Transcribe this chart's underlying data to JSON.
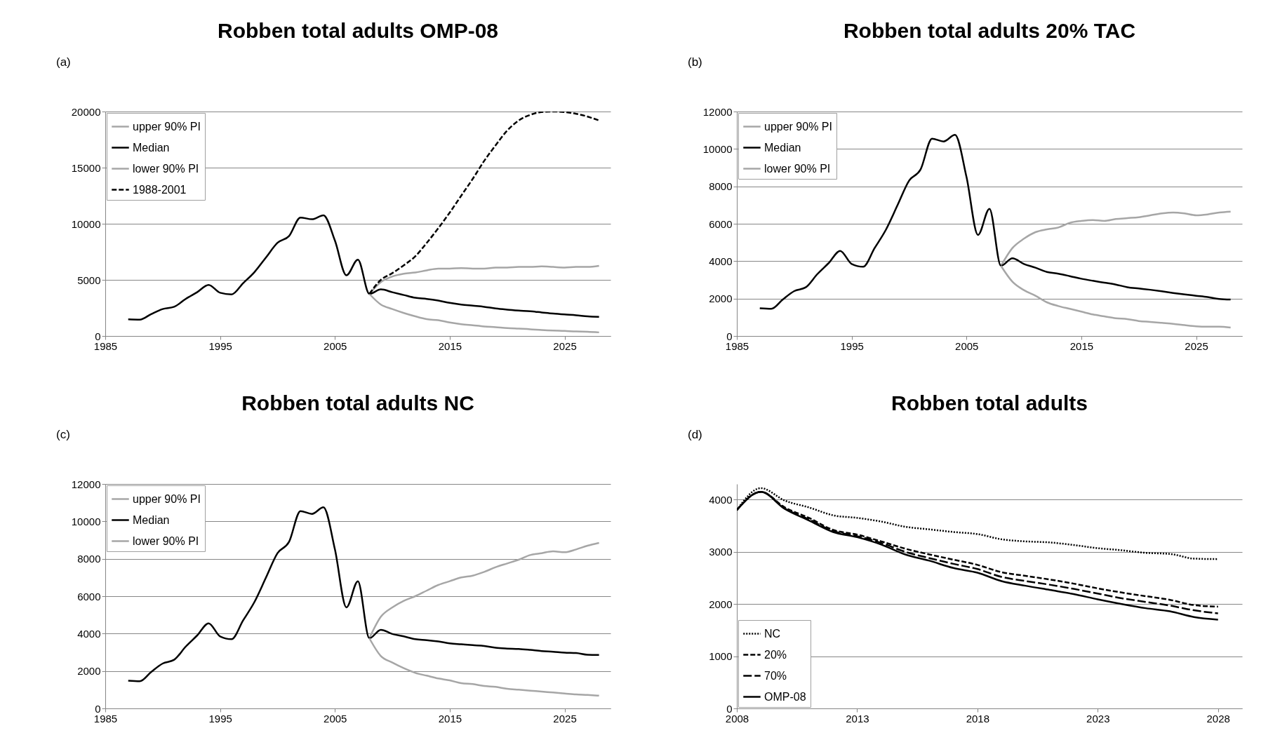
{
  "chart_data": [
    {
      "type": "line",
      "title": "Robben total adults OMP-08",
      "annotations": [
        "(a)"
      ],
      "xlim": [
        1985,
        2029
      ],
      "xticks": [
        1985,
        1995,
        2005,
        2015,
        2025
      ],
      "ylim": [
        0,
        20000
      ],
      "yticks": [
        0,
        5000,
        10000,
        15000,
        20000
      ],
      "grid": "y",
      "legend": "top left",
      "series": [
        {
          "name": "upper 90% PI",
          "color": "#a6a6a6",
          "line_style": "solid",
          "x": [
            2008,
            2009,
            2010,
            2011,
            2012,
            2013,
            2014,
            2015,
            2016,
            2017,
            2018,
            2019,
            2020,
            2021,
            2022,
            2023,
            2024,
            2025,
            2026,
            2027,
            2028
          ],
          "values": [
            3750,
            4800,
            5300,
            5550,
            5650,
            5850,
            6000,
            6000,
            6050,
            6000,
            6000,
            6100,
            6100,
            6150,
            6150,
            6200,
            6150,
            6100,
            6150,
            6150,
            6250
          ]
        },
        {
          "name": "Median",
          "color": "#000000",
          "line_style": "solid",
          "x": [
            1987,
            1988,
            1989,
            1990,
            1991,
            1992,
            1993,
            1994,
            1995,
            1996,
            1997,
            1998,
            1999,
            2000,
            2001,
            2002,
            2003,
            2004,
            2005,
            2006,
            2007,
            2008,
            2009,
            2010,
            2011,
            2012,
            2013,
            2014,
            2015,
            2016,
            2017,
            2018,
            2019,
            2020,
            2021,
            2022,
            2023,
            2024,
            2025,
            2026,
            2027,
            2028
          ],
          "values": [
            1480,
            1450,
            1950,
            2400,
            2600,
            3300,
            3900,
            4550,
            3850,
            3700,
            4700,
            5700,
            7000,
            8300,
            8900,
            10550,
            10400,
            10750,
            8500,
            5400,
            6800,
            3750,
            4150,
            3900,
            3650,
            3400,
            3300,
            3150,
            2950,
            2800,
            2700,
            2600,
            2450,
            2350,
            2270,
            2200,
            2100,
            2000,
            1920,
            1850,
            1750,
            1700
          ]
        },
        {
          "name": "lower 90% PI",
          "color": "#a6a6a6",
          "line_style": "solid",
          "x": [
            2008,
            2009,
            2010,
            2011,
            2012,
            2013,
            2014,
            2015,
            2016,
            2017,
            2018,
            2019,
            2020,
            2021,
            2022,
            2023,
            2024,
            2025,
            2026,
            2027,
            2028
          ],
          "values": [
            3750,
            2800,
            2400,
            2050,
            1750,
            1500,
            1400,
            1200,
            1050,
            950,
            850,
            780,
            700,
            650,
            600,
            530,
            480,
            450,
            400,
            380,
            320
          ]
        },
        {
          "name": "1988-2001",
          "color": "#000000",
          "line_style": "dashed",
          "x": [
            2008,
            2009,
            2010,
            2011,
            2012,
            2013,
            2014,
            2015,
            2016,
            2017,
            2018,
            2019,
            2020,
            2021,
            2022,
            2023,
            2024,
            2025,
            2026,
            2027,
            2028
          ],
          "values": [
            3750,
            5000,
            5600,
            6300,
            7100,
            8300,
            9600,
            11000,
            12500,
            14000,
            15600,
            17000,
            18300,
            19200,
            19700,
            19950,
            20000,
            19950,
            19800,
            19550,
            19200
          ]
        }
      ]
    },
    {
      "type": "line",
      "title": "Robben total adults 20% TAC",
      "annotations": [
        "(b)"
      ],
      "xlim": [
        1985,
        2029
      ],
      "xticks": [
        1985,
        1995,
        2005,
        2015,
        2025
      ],
      "ylim": [
        0,
        12000
      ],
      "yticks": [
        0,
        2000,
        4000,
        6000,
        8000,
        10000,
        12000
      ],
      "grid": "y",
      "legend": "top left",
      "series": [
        {
          "name": "upper 90% PI",
          "color": "#a6a6a6",
          "line_style": "solid",
          "x": [
            2008,
            2009,
            2010,
            2011,
            2012,
            2013,
            2014,
            2015,
            2016,
            2017,
            2018,
            2019,
            2020,
            2021,
            2022,
            2023,
            2024,
            2025,
            2026,
            2027,
            2028
          ],
          "values": [
            3750,
            4700,
            5200,
            5550,
            5700,
            5800,
            6050,
            6150,
            6200,
            6150,
            6250,
            6300,
            6350,
            6450,
            6550,
            6600,
            6550,
            6450,
            6500,
            6600,
            6650
          ]
        },
        {
          "name": "Median",
          "color": "#000000",
          "line_style": "solid",
          "x": [
            1987,
            1988,
            1989,
            1990,
            1991,
            1992,
            1993,
            1994,
            1995,
            1996,
            1997,
            1998,
            1999,
            2000,
            2001,
            2002,
            2003,
            2004,
            2005,
            2006,
            2007,
            2008,
            2009,
            2010,
            2011,
            2012,
            2013,
            2014,
            2015,
            2016,
            2017,
            2018,
            2019,
            2020,
            2021,
            2022,
            2023,
            2024,
            2025,
            2026,
            2027,
            2028
          ],
          "values": [
            1480,
            1450,
            1950,
            2400,
            2600,
            3300,
            3900,
            4550,
            3850,
            3700,
            4700,
            5700,
            7000,
            8300,
            8900,
            10550,
            10400,
            10750,
            8500,
            5400,
            6800,
            3750,
            4150,
            3850,
            3650,
            3420,
            3330,
            3200,
            3060,
            2950,
            2850,
            2750,
            2610,
            2540,
            2470,
            2390,
            2300,
            2220,
            2150,
            2080,
            1980,
            1950
          ]
        },
        {
          "name": "lower 90% PI",
          "color": "#a6a6a6",
          "line_style": "solid",
          "x": [
            2008,
            2009,
            2010,
            2011,
            2012,
            2013,
            2014,
            2015,
            2016,
            2017,
            2018,
            2019,
            2020,
            2021,
            2022,
            2023,
            2024,
            2025,
            2026,
            2027,
            2028
          ],
          "values": [
            3750,
            2900,
            2450,
            2150,
            1800,
            1600,
            1450,
            1300,
            1150,
            1050,
            950,
            900,
            800,
            750,
            700,
            650,
            580,
            520,
            500,
            500,
            450
          ]
        }
      ]
    },
    {
      "type": "line",
      "title": "Robben total adults NC",
      "annotations": [
        "(c)"
      ],
      "xlim": [
        1985,
        2029
      ],
      "xticks": [
        1985,
        1995,
        2005,
        2015,
        2025
      ],
      "ylim": [
        0,
        12000
      ],
      "yticks": [
        0,
        2000,
        4000,
        6000,
        8000,
        10000,
        12000
      ],
      "grid": "y",
      "legend": "top left",
      "series": [
        {
          "name": "upper 90% PI",
          "color": "#a6a6a6",
          "line_style": "solid",
          "x": [
            2008,
            2009,
            2010,
            2011,
            2012,
            2013,
            2014,
            2015,
            2016,
            2017,
            2018,
            2019,
            2020,
            2021,
            2022,
            2023,
            2024,
            2025,
            2026,
            2027,
            2028
          ],
          "values": [
            3750,
            4900,
            5400,
            5750,
            6000,
            6300,
            6600,
            6800,
            7000,
            7100,
            7300,
            7550,
            7750,
            7950,
            8200,
            8300,
            8400,
            8350,
            8500,
            8700,
            8850
          ]
        },
        {
          "name": "Median",
          "color": "#000000",
          "line_style": "solid",
          "x": [
            1987,
            1988,
            1989,
            1990,
            1991,
            1992,
            1993,
            1994,
            1995,
            1996,
            1997,
            1998,
            1999,
            2000,
            2001,
            2002,
            2003,
            2004,
            2005,
            2006,
            2007,
            2008,
            2009,
            2010,
            2011,
            2012,
            2013,
            2014,
            2015,
            2016,
            2017,
            2018,
            2019,
            2020,
            2021,
            2022,
            2023,
            2024,
            2025,
            2026,
            2027,
            2028
          ],
          "values": [
            1480,
            1450,
            1950,
            2400,
            2600,
            3300,
            3900,
            4550,
            3850,
            3700,
            4700,
            5700,
            7000,
            8300,
            8900,
            10550,
            10400,
            10750,
            8500,
            5400,
            6800,
            3750,
            4200,
            3980,
            3850,
            3700,
            3650,
            3580,
            3480,
            3430,
            3380,
            3340,
            3240,
            3200,
            3180,
            3130,
            3070,
            3030,
            2980,
            2960,
            2870,
            2860
          ]
        },
        {
          "name": "lower 90% PI",
          "color": "#a6a6a6",
          "line_style": "solid",
          "x": [
            2008,
            2009,
            2010,
            2011,
            2012,
            2013,
            2014,
            2015,
            2016,
            2017,
            2018,
            2019,
            2020,
            2021,
            2022,
            2023,
            2024,
            2025,
            2026,
            2027,
            2028
          ],
          "values": [
            3750,
            2800,
            2450,
            2150,
            1900,
            1750,
            1600,
            1500,
            1350,
            1300,
            1200,
            1150,
            1050,
            1000,
            950,
            900,
            850,
            800,
            750,
            720,
            680
          ]
        }
      ]
    },
    {
      "type": "line",
      "title": "Robben total adults",
      "annotations": [
        "(d)"
      ],
      "xlim": [
        2008,
        2029
      ],
      "xticks": [
        2008,
        2013,
        2018,
        2023,
        2028
      ],
      "ylim": [
        0,
        4300
      ],
      "yticks": [
        0,
        1000,
        2000,
        3000,
        4000
      ],
      "grid": "y",
      "legend": "bottom left",
      "x": [
        2008,
        2009,
        2010,
        2011,
        2012,
        2013,
        2014,
        2015,
        2016,
        2017,
        2018,
        2019,
        2020,
        2021,
        2022,
        2023,
        2024,
        2025,
        2026,
        2027,
        2028
      ],
      "series": [
        {
          "name": "NC",
          "color": "#000000",
          "line_style": "dotted",
          "values": [
            3800,
            4220,
            3980,
            3850,
            3700,
            3650,
            3580,
            3480,
            3430,
            3380,
            3340,
            3240,
            3200,
            3180,
            3130,
            3070,
            3030,
            2980,
            2960,
            2870,
            2860
          ]
        },
        {
          "name": "20%",
          "color": "#000000",
          "line_style": "dashed",
          "values": [
            3800,
            4150,
            3850,
            3650,
            3420,
            3330,
            3200,
            3060,
            2950,
            2850,
            2750,
            2610,
            2540,
            2470,
            2390,
            2300,
            2220,
            2150,
            2080,
            1980,
            1950
          ]
        },
        {
          "name": "70%",
          "color": "#000000",
          "line_style": "dashed",
          "values": [
            3800,
            4150,
            3830,
            3620,
            3400,
            3300,
            3170,
            3000,
            2880,
            2770,
            2670,
            2520,
            2440,
            2370,
            2290,
            2200,
            2110,
            2040,
            1970,
            1880,
            1820
          ]
        },
        {
          "name": "OMP-08",
          "color": "#000000",
          "line_style": "solid",
          "values": [
            3800,
            4150,
            3820,
            3600,
            3380,
            3280,
            3140,
            2950,
            2830,
            2690,
            2600,
            2440,
            2350,
            2270,
            2190,
            2090,
            2000,
            1920,
            1860,
            1750,
            1700
          ]
        }
      ]
    }
  ]
}
